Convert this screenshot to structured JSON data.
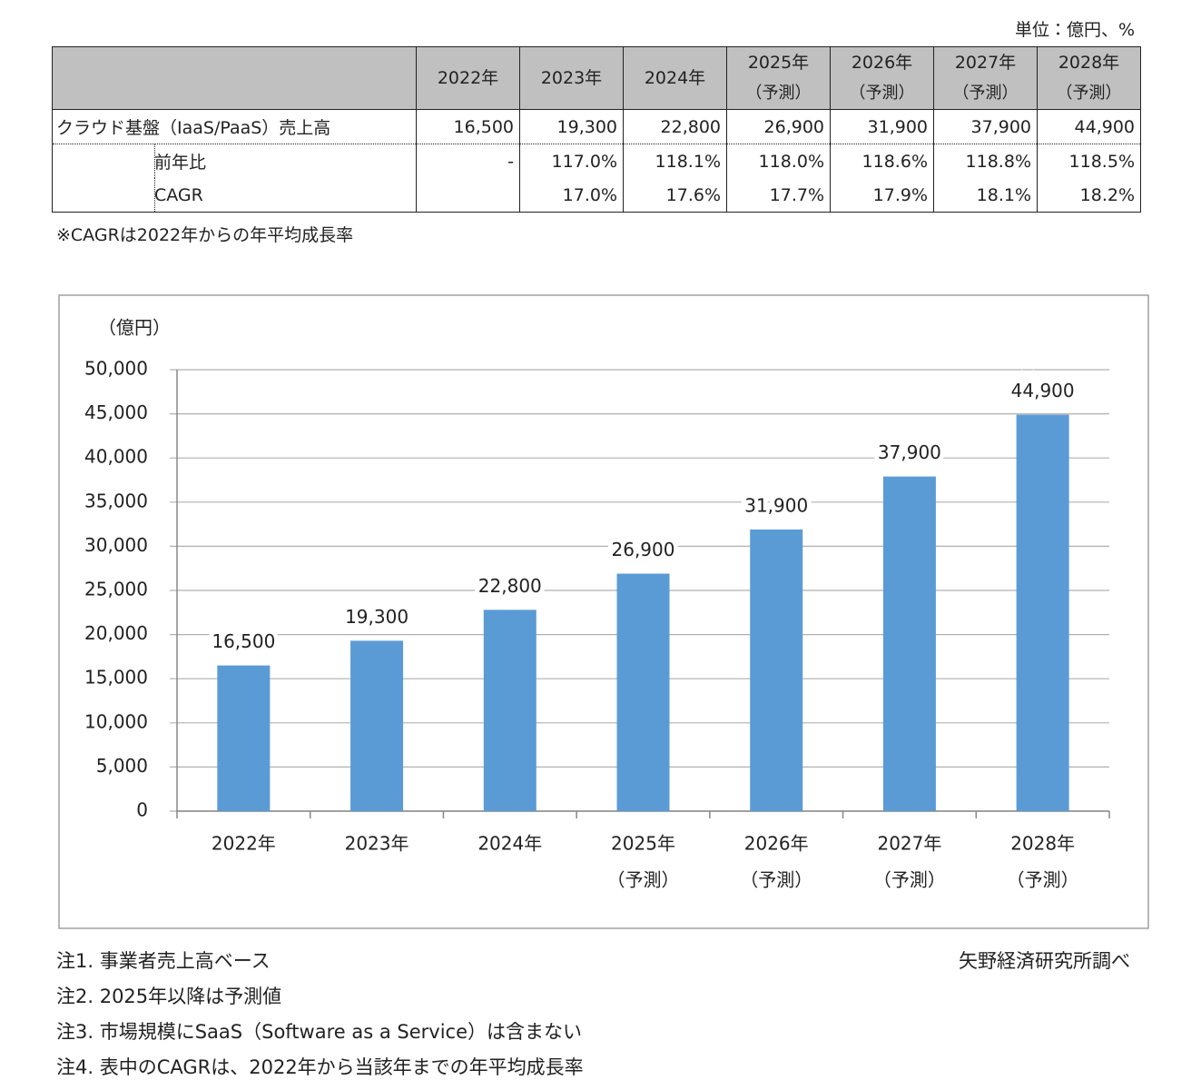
{
  "unit_note": "単位：億円、%",
  "table": {
    "columns": [
      {
        "year": "2022年"
      },
      {
        "year": "2023年"
      },
      {
        "year": "2024年"
      },
      {
        "year": "2025年",
        "sub": "（予測）"
      },
      {
        "year": "2026年",
        "sub": "（予測）"
      },
      {
        "year": "2027年",
        "sub": "（予測）"
      },
      {
        "year": "2028年",
        "sub": "（予測）"
      }
    ],
    "rows": [
      {
        "label": "クラウド基盤（IaaS/PaaS）売上高",
        "cells": [
          "16,500",
          "19,300",
          "22,800",
          "26,900",
          "31,900",
          "37,900",
          "44,900"
        ]
      },
      {
        "label": "前年比",
        "cells": [
          "-",
          "117.0%",
          "118.1%",
          "118.0%",
          "118.6%",
          "118.8%",
          "118.5%"
        ]
      },
      {
        "label": "CAGR",
        "cells": [
          null,
          "17.0%",
          "17.6%",
          "17.7%",
          "17.9%",
          "18.1%",
          "18.2%"
        ]
      }
    ]
  },
  "table_note": "※CAGRは2022年からの年平均成長率",
  "chart_data": {
    "type": "bar",
    "y_axis_label": "（億円）",
    "categories": [
      "2022年",
      "2023年",
      "2024年",
      "2025年",
      "2026年",
      "2027年",
      "2028年"
    ],
    "category_sublabels": [
      null,
      null,
      null,
      "（予測）",
      "（予測）",
      "（予測）",
      "（予測）"
    ],
    "values": [
      16500,
      19300,
      22800,
      26900,
      31900,
      37900,
      44900
    ],
    "value_labels": [
      "16,500",
      "19,300",
      "22,800",
      "26,900",
      "31,900",
      "37,900",
      "44,900"
    ],
    "color": "#5b9bd5",
    "ylim": [
      0,
      50000
    ],
    "yticks": [
      0,
      {
        "value": 5000,
        "label": "5,000"
      },
      {
        "value": 10000,
        "label": "10,000"
      },
      {
        "value": 15000,
        "label": "15,000"
      },
      {
        "value": 20000,
        "label": "20,000"
      },
      {
        "value": 25000,
        "label": "25,000"
      },
      {
        "value": 30000,
        "label": "30,000"
      },
      {
        "value": 35000,
        "label": "35,000"
      },
      {
        "value": 40000,
        "label": "40,000"
      },
      {
        "value": 45000,
        "label": "45,000"
      },
      {
        "value": 50000,
        "label": "50,000"
      }
    ],
    "grid": true
  },
  "notes": [
    "注1. 事業者売上高ベース",
    "注2. 2025年以降は予測値",
    "注3. 市場規模にSaaS（Software as a Service）は含まない",
    "注4. 表中のCAGRは、2022年から当該年までの年平均成長率"
  ],
  "source": "矢野経済研究所調べ"
}
